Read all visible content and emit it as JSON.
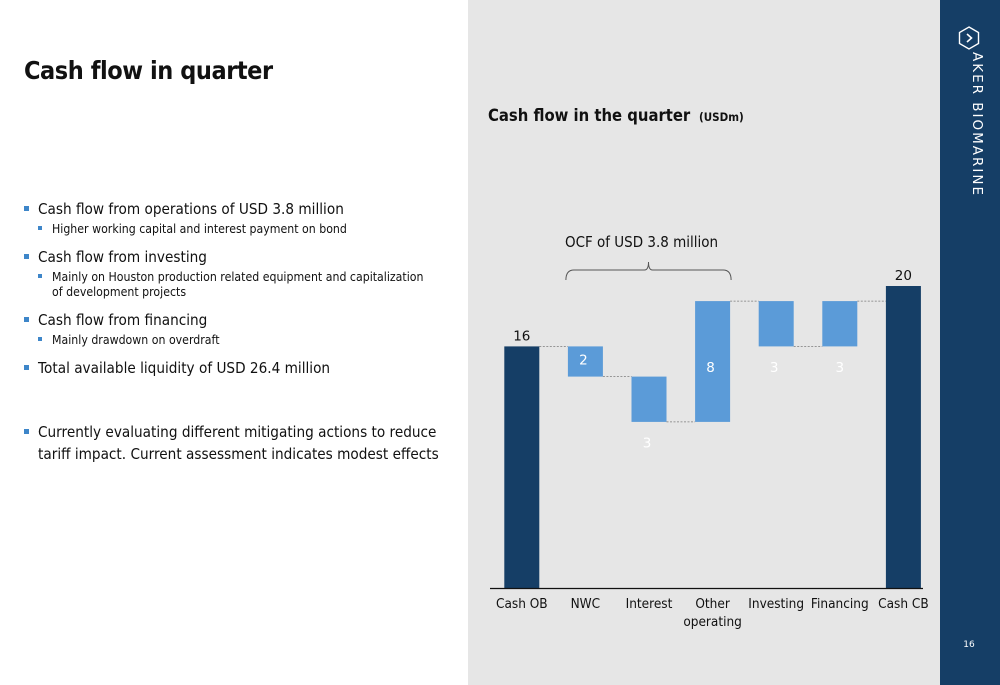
{
  "slide": {
    "title": "Cash flow in quarter",
    "page_number": "16"
  },
  "brand": {
    "name": "AKER BIOMARINE",
    "logo_icon": "hexagon-chevron-icon",
    "bar_color": "#153e66"
  },
  "bullets": [
    {
      "level": 1,
      "lines": [
        "Cash flow from operations of USD 3.8 million"
      ]
    },
    {
      "level": 2,
      "lines": [
        "Higher working capital and interest payment on bond"
      ]
    },
    {
      "level": 1,
      "lines": [
        "Cash flow from investing"
      ]
    },
    {
      "level": 2,
      "lines": [
        "Mainly on Houston production related equipment and capitalization",
        "of development projects"
      ]
    },
    {
      "level": 1,
      "lines": [
        "Cash flow from financing"
      ]
    },
    {
      "level": 2,
      "lines": [
        "Mainly drawdown on overdraft"
      ]
    },
    {
      "level": 1,
      "lines": [
        "Total available liquidity of USD 26.4 million"
      ]
    },
    {
      "level": 1,
      "lines": [
        "Currently evaluating different mitigating actions to reduce",
        "tariff impact. Current assessment indicates modest effects"
      ]
    }
  ],
  "chart_data": {
    "type": "bar",
    "subtype": "waterfall",
    "title": "Cash flow in the quarter",
    "subtitle": "(USDm)",
    "annotation": "OCF of USD 3.8 million",
    "categories": [
      "Cash OB",
      "NWC",
      "Interest",
      "Other\noperating",
      "Investing",
      "Financing",
      "Cash CB"
    ],
    "values": [
      16,
      -2,
      -3,
      8,
      -3,
      3,
      20
    ],
    "bar_kind": [
      "total",
      "delta",
      "delta",
      "delta",
      "delta",
      "delta",
      "total"
    ],
    "data_labels": [
      "16",
      "2",
      "3",
      "8",
      "3",
      "3",
      "20"
    ],
    "ylim": [
      0,
      20
    ],
    "grid": false,
    "legend": "none",
    "colors": {
      "total": "#153e66",
      "delta": "#5b9bd8",
      "label_on_bar": "#ffffff",
      "label_outside": "#111111"
    }
  }
}
